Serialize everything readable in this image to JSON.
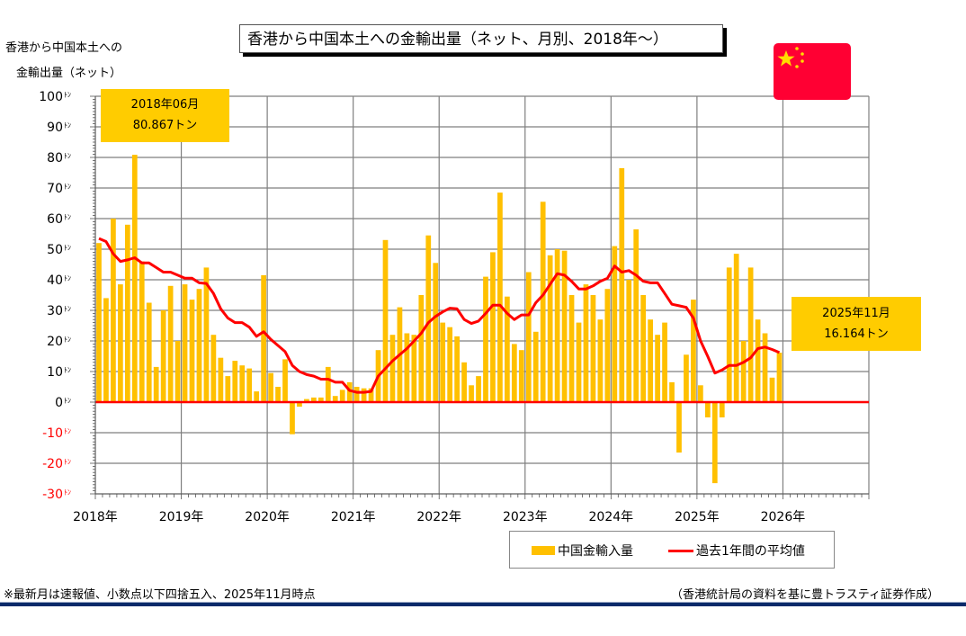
{
  "chart_data": {
    "type": "bar",
    "title": "香港から中国本土への金輸出量（ネット、月別、2018年～）",
    "ylabel_lines": [
      "香港から中国本土への",
      "金輸出量（ネット）"
    ],
    "ylim": [
      -30,
      100
    ],
    "yticks": [
      100,
      90,
      80,
      70,
      60,
      50,
      40,
      30,
      20,
      10,
      0,
      -10,
      -20,
      -30
    ],
    "ytick_labels": [
      "100",
      "90",
      "80",
      "70",
      "60",
      "50",
      "40",
      "30",
      "20",
      "10",
      "0",
      "-10",
      "-20",
      "-30"
    ],
    "ytick_unit": "ﾄﾝ",
    "xtick_labels": [
      "2018年",
      "2019年",
      "2020年",
      "2021年",
      "2022年",
      "2023年",
      "2024年",
      "2025年",
      "2026年"
    ],
    "x_start": "2018-01",
    "x_months_span": 108,
    "grid": true,
    "legend_position": "bottom-right",
    "series": [
      {
        "name": "中国金輸入量",
        "type": "bar",
        "color": "#ffc000",
        "values": [
          52,
          34,
          60,
          38.5,
          58,
          80.867,
          46,
          32.5,
          11.5,
          30,
          38,
          20,
          38.5,
          33.5,
          37,
          44,
          22,
          14.5,
          8.5,
          13.5,
          12,
          11,
          3.5,
          41.5,
          9.5,
          5,
          14,
          -10.5,
          -1.5,
          1,
          1.5,
          1.5,
          11.5,
          2,
          4,
          6.5,
          5,
          4.5,
          4.5,
          17,
          53,
          22,
          31,
          22.5,
          22,
          35,
          54.5,
          45.5,
          26,
          24.5,
          21.5,
          13,
          5.5,
          8.5,
          41,
          49,
          68.5,
          34.5,
          19,
          17,
          42.5,
          23,
          65.5,
          48,
          50,
          49.5,
          35,
          26,
          38.5,
          35,
          27,
          37,
          51,
          76.5,
          40,
          56.5,
          35,
          27,
          22,
          26,
          6.5,
          -16.5,
          15.5,
          33.5,
          5.5,
          -5,
          -26.5,
          -5,
          44,
          48.5,
          20,
          44,
          27,
          22.5,
          8,
          16.164
        ]
      },
      {
        "name": "過去1年間の平均値",
        "type": "line",
        "color": "#ff0000",
        "values": [
          53.5,
          52.5,
          48.5,
          46,
          46.5,
          47.2,
          45.5,
          45.5,
          44,
          42.5,
          42.5,
          41.5,
          40.5,
          40.5,
          39,
          38.8,
          35.5,
          30.5,
          27.5,
          26,
          26,
          24.5,
          21.5,
          23,
          20.5,
          18.5,
          16.5,
          12,
          10,
          9,
          8.5,
          7.5,
          7.5,
          6.5,
          6.5,
          3.8,
          3.2,
          3.2,
          3.5,
          8.5,
          11,
          13.5,
          15.5,
          17.5,
          20,
          22.5,
          26,
          28,
          29.5,
          30.7,
          30.5,
          27,
          25.7,
          26.5,
          29,
          31.7,
          31.7,
          29,
          27,
          28.5,
          28.5,
          32.5,
          35,
          38.5,
          42,
          41.5,
          39.5,
          37,
          37,
          38,
          39.5,
          40.5,
          44.5,
          42.5,
          43,
          41.5,
          39.5,
          39,
          39,
          35.5,
          32,
          31.5,
          31,
          27.5,
          20,
          15,
          9.5,
          10.5,
          12,
          12,
          13,
          14.5,
          17.5,
          18,
          17.2,
          16.2
        ]
      }
    ],
    "annotations": [
      {
        "date": "2018年06月",
        "value": "80.867トン"
      },
      {
        "date": "2025年11月",
        "value": "16.164トン"
      }
    ]
  },
  "header": {
    "title": "香港から中国本土への金輸出量（ネット、月別、2018年～）",
    "ylabel_line1": "香港から中国本土への",
    "ylabel_line2": "金輸出量（ネット）"
  },
  "callouts": {
    "left_date": "2018年06月",
    "left_value": "80.867トン",
    "right_date": "2025年11月",
    "right_value": "16.164トン"
  },
  "legend": {
    "bar_label": "中国金輸入量",
    "line_label": "過去1年間の平均値"
  },
  "footer": {
    "note": "※最新月は速報値、小数点以下四捨五入、2025年11月時点",
    "source": "（香港統計局の資料を基に豊トラスティ証券作成）"
  },
  "colors": {
    "bar": "#ffc000",
    "line": "#ff0000",
    "callout": "#ffcc00",
    "negative_tick": "#ff0000",
    "flag_red": "#ff0033",
    "flag_star": "#ffde00",
    "rule": "#0a2a6a"
  },
  "flag": {
    "icon": "china-flag-icon"
  }
}
